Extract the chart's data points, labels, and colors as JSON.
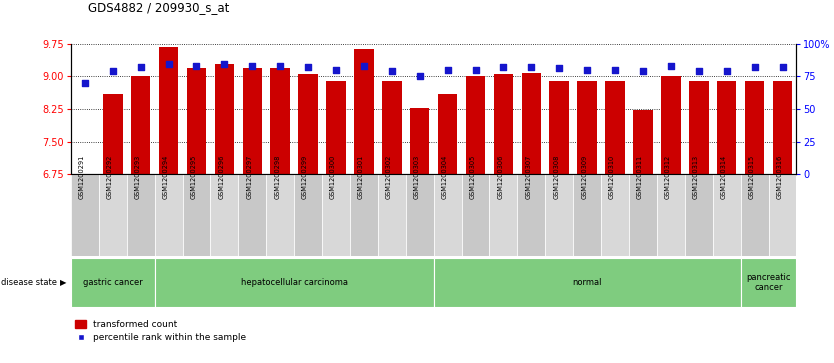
{
  "title": "GDS4882 / 209930_s_at",
  "samples": [
    "GSM1200291",
    "GSM1200292",
    "GSM1200293",
    "GSM1200294",
    "GSM1200295",
    "GSM1200296",
    "GSM1200297",
    "GSM1200298",
    "GSM1200299",
    "GSM1200300",
    "GSM1200301",
    "GSM1200302",
    "GSM1200303",
    "GSM1200304",
    "GSM1200305",
    "GSM1200306",
    "GSM1200307",
    "GSM1200308",
    "GSM1200309",
    "GSM1200310",
    "GSM1200311",
    "GSM1200312",
    "GSM1200313",
    "GSM1200314",
    "GSM1200315",
    "GSM1200316"
  ],
  "transformed_count": [
    6.72,
    8.6,
    9.0,
    9.68,
    9.18,
    9.28,
    9.18,
    9.18,
    9.05,
    8.88,
    9.62,
    8.88,
    8.28,
    8.6,
    9.0,
    9.05,
    9.08,
    8.88,
    8.88,
    8.88,
    8.22,
    9.0,
    8.88,
    8.88,
    8.88,
    8.88
  ],
  "percentile_rank": [
    70,
    79,
    82,
    84,
    83,
    84,
    83,
    83,
    82,
    80,
    83,
    79,
    75,
    80,
    80,
    82,
    82,
    81,
    80,
    80,
    79,
    83,
    79,
    79,
    82,
    82
  ],
  "groups": [
    {
      "label": "gastric cancer",
      "start": 0,
      "end": 3
    },
    {
      "label": "hepatocellular carcinoma",
      "start": 3,
      "end": 13
    },
    {
      "label": "normal",
      "start": 13,
      "end": 24
    },
    {
      "label": "pancreatic\ncancer",
      "start": 24,
      "end": 26
    }
  ],
  "ylim_left": [
    6.75,
    9.75
  ],
  "ylim_right": [
    0,
    100
  ],
  "yticks_left": [
    6.75,
    7.5,
    8.25,
    9.0,
    9.75
  ],
  "yticks_right": [
    0,
    25,
    50,
    75,
    100
  ],
  "ytick_right_labels": [
    "0",
    "25",
    "50",
    "75",
    "100%"
  ],
  "bar_color": "#CC0000",
  "dot_color": "#1515CC",
  "bar_bottom": 6.75,
  "background_color": "#ffffff",
  "group_color": "#7FCC7F"
}
